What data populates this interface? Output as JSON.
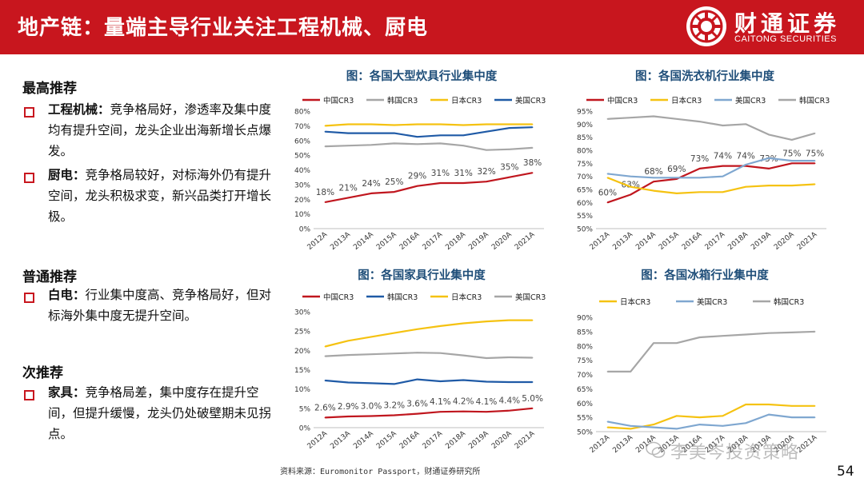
{
  "header": {
    "title": "地产链：量端主导行业关注工程机械、厨电",
    "logo_cn": "财通证券",
    "logo_en": "CAITONG SECURITIES"
  },
  "left": {
    "sections": [
      {
        "heading": "最高推荐",
        "bullets": [
          {
            "label": "工程机械：",
            "text": "竞争格局好，渗透率及集中度均有提升空间，龙头企业出海新增长点爆发。"
          },
          {
            "label": "厨电：",
            "text": "竞争格局较好，对标海外仍有提升空间，龙头积极求变，新兴品类打开增长极。"
          }
        ]
      },
      {
        "heading": "普通推荐",
        "bullets": [
          {
            "label": "白电：",
            "text": "行业集中度高、竞争格局好，但对标海外集中度无提升空间。"
          }
        ]
      },
      {
        "heading": "次推荐",
        "bullets": [
          {
            "label": "家具：",
            "text": "竞争格局差，集中度存在提升空间，但提升缓慢，龙头仍处破壁期未见拐点。"
          }
        ]
      }
    ]
  },
  "footer": {
    "source": "资料来源：Euromonitor Passport，财通证券研究所",
    "page": "54",
    "watermark": "李美岑投资策略"
  },
  "colors": {
    "red": "#c8161e",
    "china": "#c0161e",
    "korea": "#a6a6a6",
    "japan": "#f5c211",
    "usa": "#1f5aa6",
    "usa_light": "#7fa7d0",
    "title_blue": "#1f4e79"
  },
  "chart_data": [
    {
      "type": "line",
      "title": "图：各国大型炊具行业集中度",
      "categories": [
        "2012A",
        "2013A",
        "2014A",
        "2015A",
        "2016A",
        "2017A",
        "2018A",
        "2019A",
        "2020A",
        "2021A"
      ],
      "ylim": [
        0,
        80
      ],
      "yticks": [
        "0%",
        "10%",
        "20%",
        "30%",
        "40%",
        "50%",
        "60%",
        "70%",
        "80%"
      ],
      "series": [
        {
          "name": "中国CR3",
          "color": "#c0161e",
          "values": [
            18,
            21,
            24,
            25,
            29,
            31,
            31,
            32,
            35,
            38
          ],
          "labels": [
            "18%",
            "21%",
            "24%",
            "25%",
            "29%",
            "31%",
            "31%",
            "32%",
            "35%",
            "38%"
          ]
        },
        {
          "name": "韩国CR3",
          "color": "#a6a6a6",
          "values": [
            56,
            56.5,
            57,
            58,
            57.5,
            58,
            56.5,
            53.5,
            54,
            55
          ]
        },
        {
          "name": "日本CR3",
          "color": "#f5c211",
          "values": [
            70,
            71,
            71,
            70.5,
            71,
            71,
            70.5,
            71,
            71,
            71
          ]
        },
        {
          "name": "美国CR3",
          "color": "#1f5aa6",
          "values": [
            66,
            65,
            65,
            65,
            62.5,
            63.5,
            63.5,
            66,
            68.5,
            69
          ]
        }
      ]
    },
    {
      "type": "line",
      "title": "图：各国洗衣机行业集中度",
      "categories": [
        "2012A",
        "2013A",
        "2014A",
        "2015A",
        "2016A",
        "2017A",
        "2018A",
        "2019A",
        "2020A",
        "2021A"
      ],
      "ylim": [
        50,
        95
      ],
      "yticks": [
        "50%",
        "55%",
        "60%",
        "65%",
        "70%",
        "75%",
        "80%",
        "85%",
        "90%",
        "95%"
      ],
      "series": [
        {
          "name": "中国CR3",
          "color": "#c0161e",
          "values": [
            60,
            63,
            68,
            69,
            73,
            74,
            74,
            73,
            75,
            75
          ],
          "labels": [
            "60%",
            "63%",
            "68%",
            "69%",
            "73%",
            "74%",
            "74%",
            "73%",
            "75%",
            "75%"
          ]
        },
        {
          "name": "日本CR3",
          "color": "#f5c211",
          "values": [
            69.5,
            66,
            64.5,
            63.5,
            64,
            64,
            66,
            66.5,
            66.5,
            67
          ]
        },
        {
          "name": "美国CR3",
          "color": "#7fa7d0",
          "values": [
            71,
            70,
            69.5,
            69.5,
            69.5,
            70,
            74.5,
            77,
            76,
            76
          ]
        },
        {
          "name": "韩国CR3",
          "color": "#a6a6a6",
          "values": [
            92,
            92.5,
            93,
            92,
            91,
            89.5,
            90,
            86,
            84,
            86.5
          ]
        }
      ]
    },
    {
      "type": "line",
      "title": "图：各国家具行业集中度",
      "categories": [
        "2012A",
        "2013A",
        "2014A",
        "2015A",
        "2016A",
        "2017A",
        "2018A",
        "2019A",
        "2020A",
        "2021A"
      ],
      "ylim": [
        0,
        30
      ],
      "yticks": [
        "0%",
        "5%",
        "10%",
        "15%",
        "20%",
        "25%",
        "30%"
      ],
      "series": [
        {
          "name": "中国CR3",
          "color": "#c0161e",
          "values": [
            2.6,
            2.9,
            3.0,
            3.2,
            3.6,
            4.1,
            4.2,
            4.1,
            4.4,
            5.0
          ],
          "labels": [
            "2.6%",
            "2.9%",
            "3.0%",
            "3.2%",
            "3.6%",
            "4.1%",
            "4.2%",
            "4.1%",
            "4.4%",
            "5.0%"
          ]
        },
        {
          "name": "韩国CR3",
          "color": "#1f5aa6",
          "values": [
            12.2,
            11.7,
            11.5,
            11.3,
            12.5,
            12.0,
            12.3,
            11.9,
            11.8,
            11.8
          ]
        },
        {
          "name": "日本CR3",
          "color": "#f5c211",
          "values": [
            21,
            22.5,
            23.5,
            24.5,
            25.5,
            26.3,
            27,
            27.5,
            27.8,
            27.8
          ]
        },
        {
          "name": "美国CR3",
          "color": "#a6a6a6",
          "values": [
            18.5,
            18.8,
            19,
            19.2,
            19.4,
            19.3,
            18.7,
            18,
            18.2,
            18.1
          ]
        }
      ]
    },
    {
      "type": "line",
      "title": "图：各国冰箱行业集中度",
      "categories": [
        "2012A",
        "2013A",
        "2014A",
        "2015A",
        "2016A",
        "2017A",
        "2018A",
        "2019A",
        "2020A",
        "2021A"
      ],
      "ylim": [
        50,
        90
      ],
      "yticks": [
        "50%",
        "55%",
        "60%",
        "65%",
        "70%",
        "75%",
        "80%",
        "85%",
        "90%"
      ],
      "series": [
        {
          "name": "日本CR3",
          "color": "#f5c211",
          "values": [
            51.5,
            51,
            52.5,
            55.5,
            55,
            55.5,
            59.5,
            59.5,
            59,
            59
          ]
        },
        {
          "name": "美国CR3",
          "color": "#7fa7d0",
          "values": [
            53.5,
            52,
            51.5,
            51,
            52.5,
            52,
            53,
            56,
            55,
            55
          ]
        },
        {
          "name": "韩国CR3",
          "color": "#a6a6a6",
          "values": [
            71,
            71,
            81,
            81,
            83,
            83.5,
            84,
            84.5,
            84.7,
            85
          ]
        }
      ]
    }
  ]
}
